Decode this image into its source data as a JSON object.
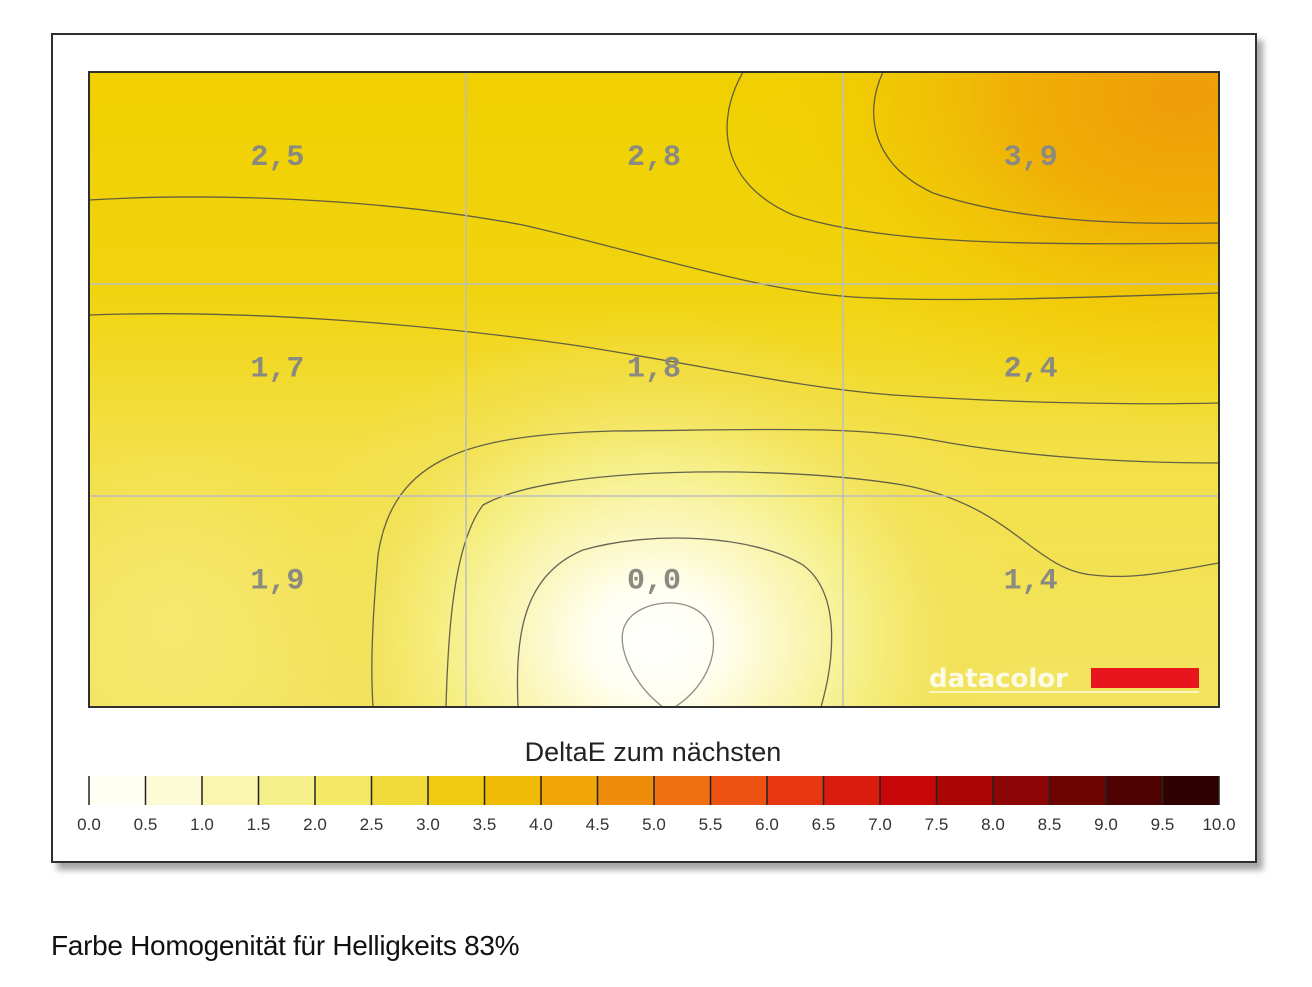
{
  "chart_data": {
    "type": "heatmap",
    "title": "",
    "grid": {
      "rows": 3,
      "cols": 3
    },
    "cells": [
      [
        "2,5",
        "2,8",
        "3,9"
      ],
      [
        "1,7",
        "1,8",
        "2,4"
      ],
      [
        "1,9",
        "0,0",
        "1,4"
      ]
    ],
    "values": [
      [
        2.5,
        2.8,
        3.9
      ],
      [
        1.7,
        1.8,
        2.4
      ],
      [
        1.9,
        0.0,
        1.4
      ]
    ],
    "colorbar": {
      "label": "DeltaE zum nächsten",
      "range": [
        0,
        10
      ],
      "ticks": [
        "0.0",
        "0.5",
        "1.0",
        "1.5",
        "2.0",
        "2.5",
        "3.0",
        "3.5",
        "4.0",
        "4.5",
        "5.0",
        "5.5",
        "6.0",
        "6.5",
        "7.0",
        "7.5",
        "8.0",
        "8.5",
        "9.0",
        "9.5",
        "10.0"
      ],
      "colors": [
        "#fffff2",
        "#fdfbd6",
        "#faf6b0",
        "#f6f08a",
        "#f3e965",
        "#f0db3a",
        "#eecb10",
        "#efbb06",
        "#f0a608",
        "#f08c0c",
        "#ee7010",
        "#ec5312",
        "#e63710",
        "#da1c0c",
        "#c80808",
        "#ab0606",
        "#8c0606",
        "#6c0404",
        "#4e0202",
        "#300101"
      ]
    },
    "watermark": "datacolor",
    "caption": "Farbe Homogenität für Helligkeits 83%"
  }
}
